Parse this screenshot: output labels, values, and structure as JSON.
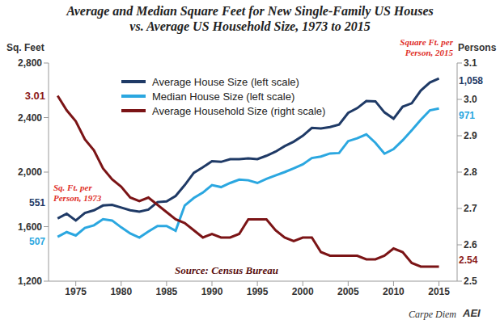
{
  "chart_data": {
    "type": "line",
    "title": "Average and Median Square Feet for New Single-Family US Houses vs. Average US Household Size, 1973 to 2015",
    "y_label": "Sq. Feet",
    "y2_label": "Persons",
    "x": [
      1973,
      1974,
      1975,
      1976,
      1977,
      1978,
      1979,
      1980,
      1981,
      1982,
      1983,
      1984,
      1985,
      1986,
      1987,
      1988,
      1989,
      1990,
      1991,
      1992,
      1993,
      1994,
      1995,
      1996,
      1997,
      1998,
      1999,
      2000,
      2001,
      2002,
      2003,
      2004,
      2005,
      2006,
      2007,
      2008,
      2009,
      2010,
      2011,
      2012,
      2013,
      2014,
      2015
    ],
    "xlim": [
      1972,
      2017
    ],
    "xticks": [
      1975,
      1980,
      1985,
      1990,
      1995,
      2000,
      2005,
      2010,
      2015
    ],
    "ylim": [
      1200,
      2800
    ],
    "yticks": [
      {
        "value": 1200,
        "label": "1,200"
      },
      {
        "value": 1600,
        "label": "1,600"
      },
      {
        "value": 2000,
        "label": "2,000"
      },
      {
        "value": 2400,
        "label": "2,400"
      },
      {
        "value": 2800,
        "label": "2,800"
      }
    ],
    "y2lim": [
      2.5,
      3.1
    ],
    "y2ticks": [
      2.5,
      2.6,
      2.7,
      2.8,
      2.9,
      {
        "value": 3,
        "label": "3.0"
      },
      3.1
    ],
    "legend": "upper left",
    "series": [
      {
        "name": "Average House Size (left scale)",
        "color": "#1f3a66",
        "values": [
          1660,
          1695,
          1645,
          1700,
          1720,
          1755,
          1760,
          1740,
          1720,
          1710,
          1725,
          1780,
          1785,
          1825,
          1905,
          1995,
          2035,
          2080,
          2075,
          2095,
          2095,
          2100,
          2095,
          2120,
          2150,
          2190,
          2223,
          2266,
          2324,
          2320,
          2330,
          2349,
          2434,
          2469,
          2521,
          2519,
          2438,
          2392,
          2480,
          2505,
          2598,
          2657,
          2687
        ]
      },
      {
        "name": "Median House Size (left scale)",
        "color": "#2ba7e0",
        "values": [
          1525,
          1560,
          1535,
          1590,
          1610,
          1655,
          1645,
          1595,
          1550,
          1520,
          1565,
          1605,
          1605,
          1570,
          1755,
          1810,
          1850,
          1905,
          1890,
          1920,
          1945,
          1940,
          1920,
          1950,
          1975,
          2000,
          2028,
          2057,
          2103,
          2114,
          2137,
          2140,
          2227,
          2248,
          2277,
          2215,
          2135,
          2169,
          2233,
          2306,
          2384,
          2453,
          2467
        ]
      },
      {
        "name": "Average Household Size (right scale)",
        "color": "#7b1416",
        "axis": "y2",
        "values": [
          3.01,
          2.97,
          2.94,
          2.89,
          2.86,
          2.81,
          2.78,
          2.76,
          2.73,
          2.72,
          2.73,
          2.71,
          2.69,
          2.67,
          2.66,
          2.64,
          2.62,
          2.63,
          2.62,
          2.62,
          2.63,
          2.67,
          2.67,
          2.67,
          2.64,
          2.62,
          2.61,
          2.62,
          2.62,
          2.58,
          2.57,
          2.57,
          2.57,
          2.57,
          2.56,
          2.56,
          2.57,
          2.59,
          2.58,
          2.55,
          2.54,
          2.54,
          2.54
        ]
      }
    ],
    "annotations": [
      "3.01",
      "Sq. Ft. per Person, 1973",
      "551",
      "507",
      "Square Ft. per Person, 2015",
      "1,058",
      "971",
      "2.54",
      "Source: Census Bureau",
      "Carpe Diem",
      "AEI"
    ]
  }
}
